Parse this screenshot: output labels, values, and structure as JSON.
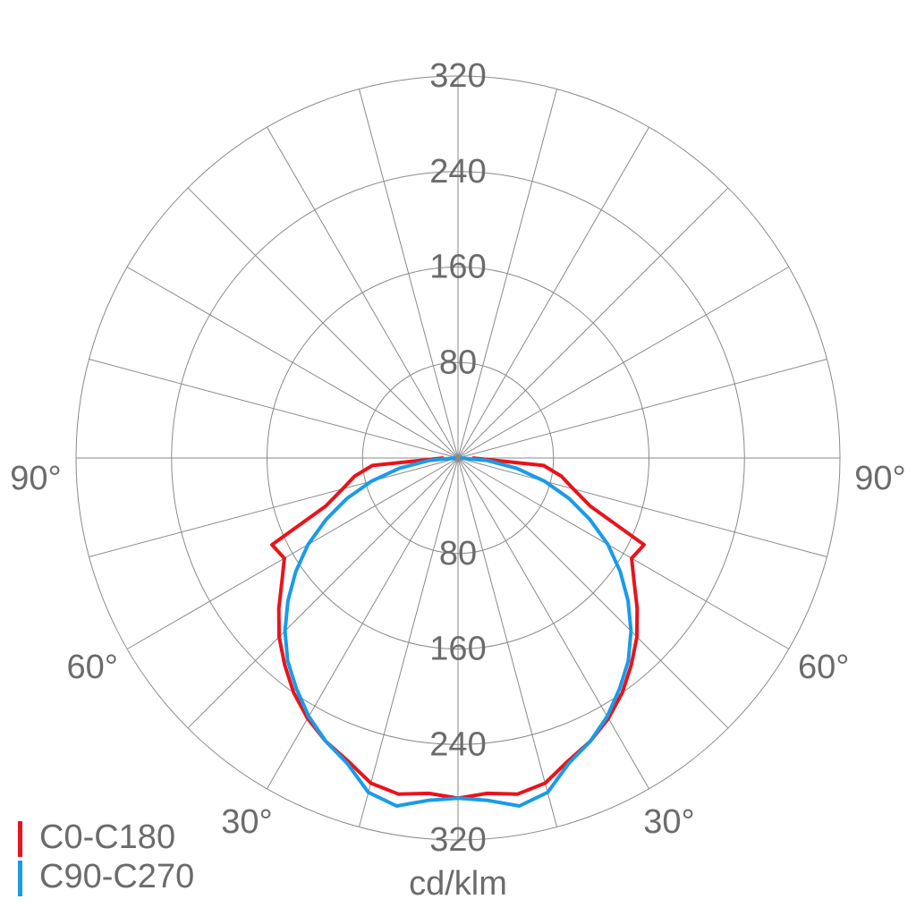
{
  "chart_data": {
    "type": "polar",
    "x": [
      -90,
      -85,
      -80,
      -75,
      -70,
      -65,
      -60,
      -55,
      -50,
      -45,
      -40,
      -35,
      -30,
      -25,
      -20,
      -15,
      -10,
      -5,
      0,
      5,
      10,
      15,
      20,
      25,
      30,
      35,
      40,
      45,
      50,
      55,
      60,
      65,
      70,
      75,
      80,
      85,
      90
    ],
    "xticks": [
      {
        "value": -90,
        "label": "90°"
      },
      {
        "value": -60,
        "label": "60°"
      },
      {
        "value": -30,
        "label": "30°"
      },
      {
        "value": 30,
        "label": "30°"
      },
      {
        "value": 60,
        "label": "60°"
      },
      {
        "value": 90,
        "label": "90°"
      }
    ],
    "ylim": [
      0,
      320
    ],
    "yticks": [
      80,
      160,
      240,
      320
    ],
    "y_label": "cd/klm",
    "series": [
      {
        "name": "C0-C180",
        "color": "#e8141b",
        "values": [
          12,
          72,
          88,
          100,
          118,
          172,
          168,
          180,
          196,
          212,
          226,
          240,
          252,
          262,
          270,
          282,
          286,
          282,
          285,
          282,
          286,
          282,
          270,
          262,
          252,
          240,
          226,
          212,
          196,
          180,
          168,
          172,
          118,
          100,
          88,
          72,
          12
        ]
      },
      {
        "name": "C90-C270",
        "color": "#1a9be8",
        "values": [
          2,
          25,
          50,
          75,
          99,
          122,
          145,
          166,
          186,
          205,
          222,
          236,
          250,
          262,
          272,
          290,
          296,
          288,
          285,
          288,
          296,
          290,
          272,
          262,
          250,
          236,
          222,
          205,
          186,
          166,
          145,
          122,
          99,
          75,
          50,
          25,
          2
        ]
      }
    ]
  }
}
